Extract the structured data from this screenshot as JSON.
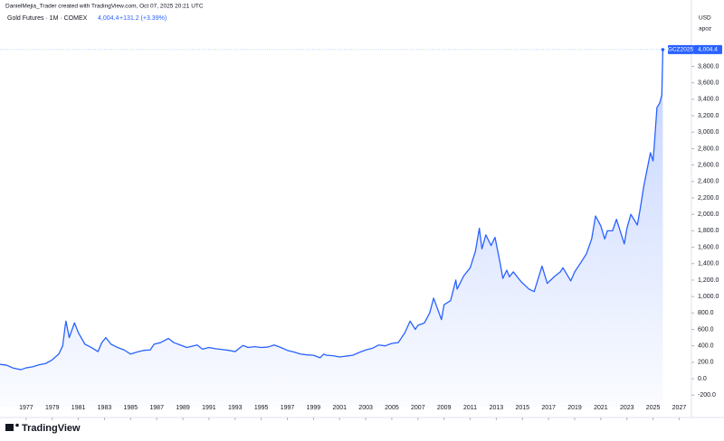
{
  "chart_data": {
    "type": "line",
    "credit": "DanielMejia_Trader created with TradingView.com, Oct 07, 2025 20:21 UTC",
    "title": "Gold Futures · 1M · COMEX",
    "last": "4,004.4",
    "change": "+131.2 (+3.39%)",
    "symbol": "GCZ2025",
    "currency": "USD",
    "unit": "apoz",
    "brand": "TradingView",
    "color": "#2962ff",
    "grid": false,
    "xlim": [
      1975,
      2027.8
    ],
    "xticks": [
      1977,
      1979,
      1981,
      1983,
      1985,
      1987,
      1989,
      1991,
      1993,
      1995,
      1997,
      1999,
      2001,
      2003,
      2005,
      2007,
      2009,
      2011,
      2013,
      2015,
      2017,
      2019,
      2021,
      2023,
      2025,
      2027
    ],
    "ylim": [
      -340,
      4300
    ],
    "yticks": [
      {
        "value": -200,
        "label": "-200.0"
      },
      {
        "value": 0,
        "label": "0.0"
      },
      {
        "value": 200,
        "label": "200.0"
      },
      {
        "value": 400,
        "label": "400.0"
      },
      {
        "value": 600,
        "label": "600.0"
      },
      {
        "value": 800,
        "label": "800.0"
      },
      {
        "value": 1000,
        "label": "1,000.0"
      },
      {
        "value": 1200,
        "label": "1,200.0"
      },
      {
        "value": 1400,
        "label": "1,400.0"
      },
      {
        "value": 1600,
        "label": "1,600.0"
      },
      {
        "value": 1800,
        "label": "1,800.0"
      },
      {
        "value": 2000,
        "label": "2,000.0"
      },
      {
        "value": 2200,
        "label": "2,200.0"
      },
      {
        "value": 2400,
        "label": "2,400.0"
      },
      {
        "value": 2600,
        "label": "2,600.0"
      },
      {
        "value": 2800,
        "label": "2,800.0"
      },
      {
        "value": 3000,
        "label": "3,000.0"
      },
      {
        "value": 3200,
        "label": "3,200.0"
      },
      {
        "value": 3400,
        "label": "3,400.0"
      },
      {
        "value": 3600,
        "label": "3,600.0"
      },
      {
        "value": 3800,
        "label": "3,800.0"
      }
    ],
    "x": [
      1975.0,
      1975.5,
      1976.0,
      1976.6,
      1977.0,
      1977.5,
      1978.0,
      1978.5,
      1979.0,
      1979.5,
      1979.8,
      1980.0,
      1980.05,
      1980.3,
      1980.7,
      1981.0,
      1981.5,
      1982.0,
      1982.5,
      1982.8,
      1983.1,
      1983.5,
      1984.0,
      1984.5,
      1985.0,
      1985.5,
      1986.0,
      1986.5,
      1986.8,
      1987.3,
      1987.9,
      1988.3,
      1988.8,
      1989.3,
      1989.8,
      1990.1,
      1990.5,
      1991.0,
      1991.5,
      1992.0,
      1992.5,
      1993.0,
      1993.6,
      1994.0,
      1994.5,
      1995.0,
      1995.5,
      1996.0,
      1996.5,
      1997.0,
      1997.5,
      1998.0,
      1998.5,
      1999.0,
      1999.5,
      1999.8,
      2000.0,
      2000.5,
      2001.0,
      2001.5,
      2002.0,
      2002.5,
      2003.0,
      2003.5,
      2004.0,
      2004.5,
      2005.0,
      2005.5,
      2006.0,
      2006.4,
      2006.8,
      2007.0,
      2007.5,
      2007.9,
      2008.2,
      2008.8,
      2009.0,
      2009.5,
      2009.9,
      2010.0,
      2010.5,
      2011.0,
      2011.4,
      2011.7,
      2011.9,
      2012.2,
      2012.6,
      2012.9,
      2013.3,
      2013.5,
      2013.8,
      2014.0,
      2014.3,
      2014.9,
      2015.5,
      2015.9,
      2016.5,
      2016.9,
      2017.5,
      2017.9,
      2018.1,
      2018.7,
      2019.0,
      2019.5,
      2019.9,
      2020.3,
      2020.6,
      2021.0,
      2021.3,
      2021.5,
      2021.9,
      2022.2,
      2022.8,
      2023.0,
      2023.3,
      2023.8,
      2024.0,
      2024.3,
      2024.8,
      2025.0,
      2025.1,
      2025.3,
      2025.5,
      2025.67,
      2025.75
    ],
    "series": [
      {
        "name": "Gold Futures",
        "color": "#2962ff",
        "values": [
          175,
          165,
          130,
          110,
          132,
          145,
          170,
          185,
          230,
          300,
          400,
          650,
          700,
          500,
          680,
          560,
          420,
          380,
          330,
          440,
          500,
          420,
          380,
          350,
          300,
          325,
          345,
          350,
          420,
          440,
          490,
          440,
          410,
          380,
          400,
          410,
          360,
          380,
          365,
          355,
          345,
          330,
          405,
          380,
          390,
          380,
          385,
          410,
          380,
          345,
          325,
          300,
          290,
          285,
          255,
          300,
          285,
          280,
          265,
          275,
          285,
          320,
          350,
          370,
          410,
          400,
          430,
          440,
          560,
          700,
          600,
          650,
          680,
          800,
          980,
          720,
          900,
          950,
          1200,
          1090,
          1250,
          1350,
          1550,
          1830,
          1580,
          1750,
          1620,
          1720,
          1400,
          1220,
          1320,
          1240,
          1300,
          1180,
          1090,
          1060,
          1370,
          1160,
          1250,
          1300,
          1350,
          1190,
          1300,
          1420,
          1520,
          1700,
          1980,
          1860,
          1700,
          1800,
          1800,
          1940,
          1640,
          1830,
          2000,
          1870,
          2050,
          2350,
          2750,
          2650,
          2850,
          3300,
          3350,
          3450,
          4004.4
        ]
      }
    ]
  }
}
